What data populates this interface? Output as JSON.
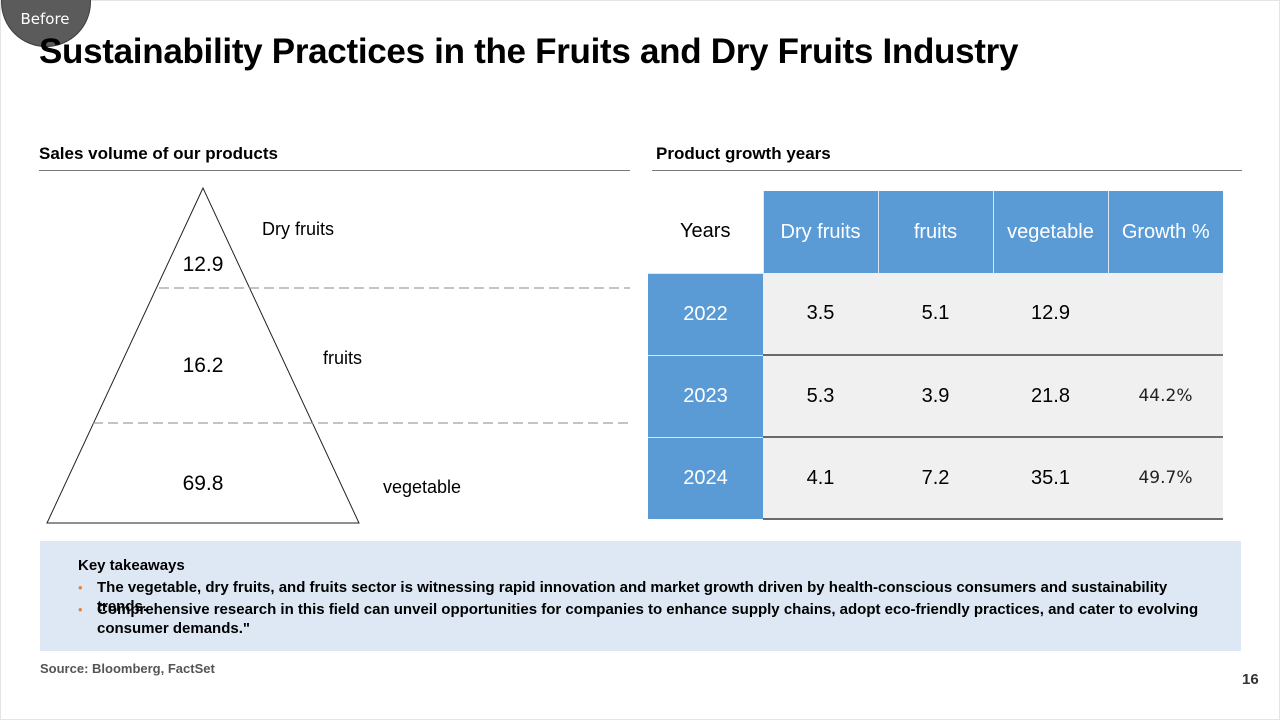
{
  "badge": {
    "label": "Before"
  },
  "title": "Sustainability Practices in the Fruits and Dry Fruits Industry",
  "left_section": {
    "heading": "Sales volume of our products",
    "pyramid": {
      "tiers": [
        {
          "value": "12.9",
          "label": "Dry fruits"
        },
        {
          "value": "16.2",
          "label": "fruits"
        },
        {
          "value": "69.8",
          "label": "vegetable"
        }
      ]
    }
  },
  "right_section": {
    "heading": "Product growth years",
    "table": {
      "headers": [
        "Years",
        "Dry fruits",
        "fruits",
        "vegetable",
        "Growth %"
      ],
      "rows": [
        {
          "year": "2022",
          "dry_fruits": "3.5",
          "fruits": "5.1",
          "vegetable": "12.9",
          "growth": ""
        },
        {
          "year": "2023",
          "dry_fruits": "5.3",
          "fruits": "3.9",
          "vegetable": "21.8",
          "growth": "44.2%"
        },
        {
          "year": "2024",
          "dry_fruits": "4.1",
          "fruits": "7.2",
          "vegetable": "35.1",
          "growth": "49.7%"
        }
      ]
    }
  },
  "takeaways": {
    "heading": "Key takeaways",
    "bullet_glyph": "•",
    "items": [
      "The vegetable, dry fruits, and fruits sector is witnessing rapid innovation and market growth driven by health-conscious consumers and sustainability trends.",
      "Comprehensive research in this field can unveil opportunities for companies to enhance supply chains, adopt eco-friendly practices, and cater to evolving consumer demands.\""
    ]
  },
  "source": "Source: Bloomberg, FactSet",
  "page_number": "16",
  "colors": {
    "accent": "#5b9bd5",
    "cell_bg": "#f0f0f0",
    "takeaway_bg": "#dde8f4",
    "bullet": "#e8823a"
  }
}
